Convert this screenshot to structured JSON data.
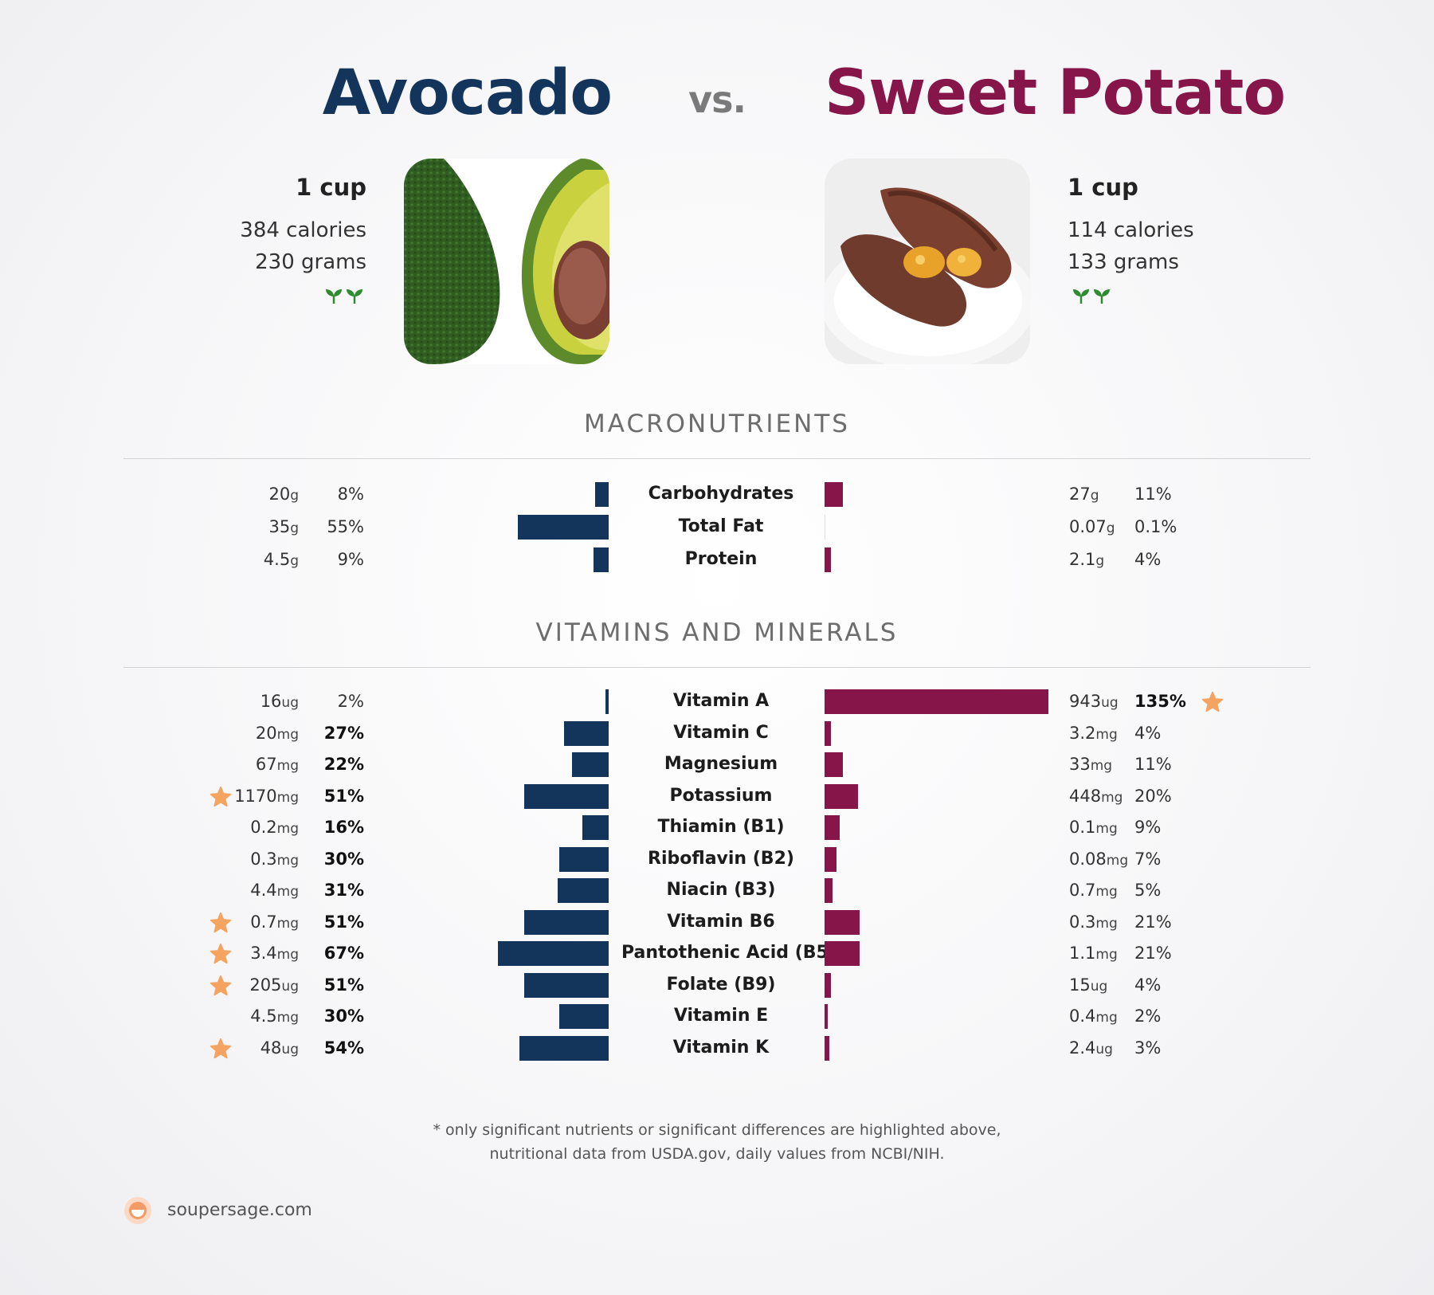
{
  "header": {
    "food_a": "Avocado",
    "vs": "vs.",
    "food_b": "Sweet Potato"
  },
  "food_a": {
    "serving": "1 cup",
    "calories": "384 calories",
    "grams": "230 grams",
    "image": "avocado-photo",
    "badge_icon": "sprout-icon"
  },
  "food_b": {
    "serving": "1 cup",
    "calories": "114 calories",
    "grams": "133 grams",
    "image": "sweet-potato-photo",
    "badge_icon": "sprout-icon"
  },
  "colors": {
    "food_a": "#13355b",
    "food_b": "#86154a",
    "star": "#f4a460"
  },
  "sections": {
    "macro": "MACRONUTRIENTS",
    "vitamins": "VITAMINS AND MINERALS"
  },
  "chart_data": [
    {
      "type": "bar",
      "orientation": "horizontal-diverging",
      "categories": [
        "Carbohydrates",
        "Total Fat",
        "Protein"
      ],
      "series": [
        {
          "name": "Avocado",
          "amounts": [
            "20",
            "35",
            "4.5"
          ],
          "units": [
            "g",
            "g",
            "g"
          ],
          "percent_labels": [
            "8%",
            "55%",
            "9%"
          ],
          "values": [
            8,
            55,
            9
          ],
          "bold": [
            false,
            false,
            false
          ],
          "starred": [
            false,
            false,
            false
          ]
        },
        {
          "name": "Sweet Potato",
          "amounts": [
            "27",
            "0.07",
            "2.1"
          ],
          "units": [
            "g",
            "g",
            "g"
          ],
          "percent_labels": [
            "11%",
            "0.1%",
            "4%"
          ],
          "values": [
            11,
            0.1,
            4
          ],
          "bold": [
            false,
            false,
            false
          ],
          "starred": [
            false,
            false,
            false
          ]
        }
      ]
    },
    {
      "type": "bar",
      "orientation": "horizontal-diverging",
      "categories": [
        "Vitamin A",
        "Vitamin C",
        "Magnesium",
        "Potassium",
        "Thiamin (B1)",
        "Riboflavin (B2)",
        "Niacin (B3)",
        "Vitamin B6",
        "Pantothenic Acid (B5)",
        "Folate (B9)",
        "Vitamin E",
        "Vitamin K"
      ],
      "series": [
        {
          "name": "Avocado",
          "amounts": [
            "16",
            "20",
            "67",
            "1170",
            "0.2",
            "0.3",
            "4.4",
            "0.7",
            "3.4",
            "205",
            "4.5",
            "48"
          ],
          "units": [
            "ug",
            "mg",
            "mg",
            "mg",
            "mg",
            "mg",
            "mg",
            "mg",
            "mg",
            "ug",
            "mg",
            "ug"
          ],
          "percent_labels": [
            "2%",
            "27%",
            "22%",
            "51%",
            "16%",
            "30%",
            "31%",
            "51%",
            "67%",
            "51%",
            "30%",
            "54%"
          ],
          "values": [
            2,
            27,
            22,
            51,
            16,
            30,
            31,
            51,
            67,
            51,
            30,
            54
          ],
          "bold": [
            false,
            true,
            true,
            true,
            true,
            true,
            true,
            true,
            true,
            true,
            true,
            true
          ],
          "starred": [
            false,
            false,
            false,
            true,
            false,
            false,
            false,
            true,
            true,
            true,
            false,
            true
          ]
        },
        {
          "name": "Sweet Potato",
          "amounts": [
            "943",
            "3.2",
            "33",
            "448",
            "0.1",
            "0.08",
            "0.7",
            "0.3",
            "1.1",
            "15",
            "0.4",
            "2.4"
          ],
          "units": [
            "ug",
            "mg",
            "mg",
            "mg",
            "mg",
            "mg",
            "mg",
            "mg",
            "mg",
            "ug",
            "mg",
            "ug"
          ],
          "percent_labels": [
            "135%",
            "4%",
            "11%",
            "20%",
            "9%",
            "7%",
            "5%",
            "21%",
            "21%",
            "4%",
            "2%",
            "3%"
          ],
          "values": [
            135,
            4,
            11,
            20,
            9,
            7,
            5,
            21,
            21,
            4,
            2,
            3
          ],
          "bold": [
            true,
            false,
            false,
            false,
            false,
            false,
            false,
            false,
            false,
            false,
            false,
            false
          ],
          "starred": [
            true,
            false,
            false,
            false,
            false,
            false,
            false,
            false,
            false,
            false,
            false,
            false
          ]
        }
      ]
    }
  ],
  "footnote": {
    "line1": "* only significant nutrients or significant differences are highlighted above,",
    "line2": "nutritional data from USDA.gov, daily values from NCBI/NIH."
  },
  "brand": {
    "site": "soupersage.com",
    "logo_icon": "soupersage-logo-icon"
  }
}
